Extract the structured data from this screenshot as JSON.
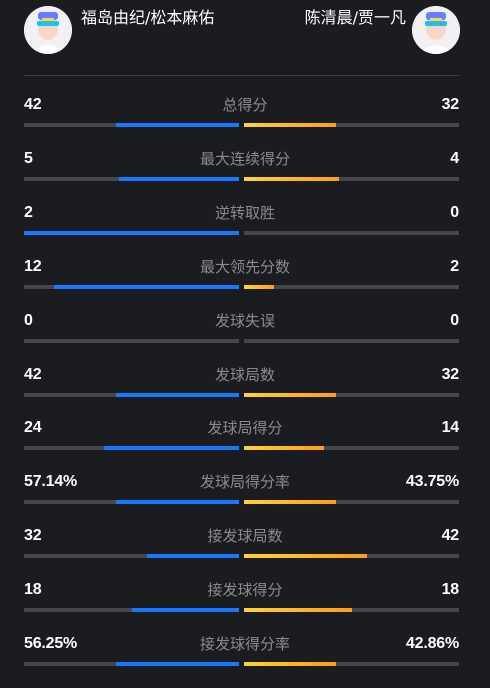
{
  "players": {
    "left": {
      "name": "福岛由纪/松本麻佑",
      "avatar_icon": "player-avatar-icon"
    },
    "right": {
      "name": "陈清晨/贾一凡",
      "avatar_icon": "player-avatar-icon"
    }
  },
  "colors": {
    "left_bar": "#1677ff",
    "right_bar": "#ffa31a",
    "track": "#46474c",
    "background": "#1b1c20"
  },
  "stats": [
    {
      "label": "总得分",
      "left": "42",
      "right": "32",
      "left_share": 0.57,
      "right_share": 0.43
    },
    {
      "label": "最大连续得分",
      "left": "5",
      "right": "4",
      "left_share": 0.56,
      "right_share": 0.44
    },
    {
      "label": "逆转取胜",
      "left": "2",
      "right": "0",
      "left_share": 1.0,
      "right_share": 0.0
    },
    {
      "label": "最大领先分数",
      "left": "12",
      "right": "2",
      "left_share": 0.86,
      "right_share": 0.14
    },
    {
      "label": "发球失误",
      "left": "0",
      "right": "0",
      "left_share": 0.0,
      "right_share": 0.0
    },
    {
      "label": "发球局数",
      "left": "42",
      "right": "32",
      "left_share": 0.57,
      "right_share": 0.43
    },
    {
      "label": "发球局得分",
      "left": "24",
      "right": "14",
      "left_share": 0.63,
      "right_share": 0.37
    },
    {
      "label": "发球局得分率",
      "left": "57.14%",
      "right": "43.75%",
      "left_share": 0.57,
      "right_share": 0.43
    },
    {
      "label": "接发球局数",
      "left": "32",
      "right": "42",
      "left_share": 0.43,
      "right_share": 0.57
    },
    {
      "label": "接发球得分",
      "left": "18",
      "right": "18",
      "left_share": 0.5,
      "right_share": 0.5
    },
    {
      "label": "接发球得分率",
      "left": "56.25%",
      "right": "42.86%",
      "left_share": 0.57,
      "right_share": 0.43
    }
  ]
}
